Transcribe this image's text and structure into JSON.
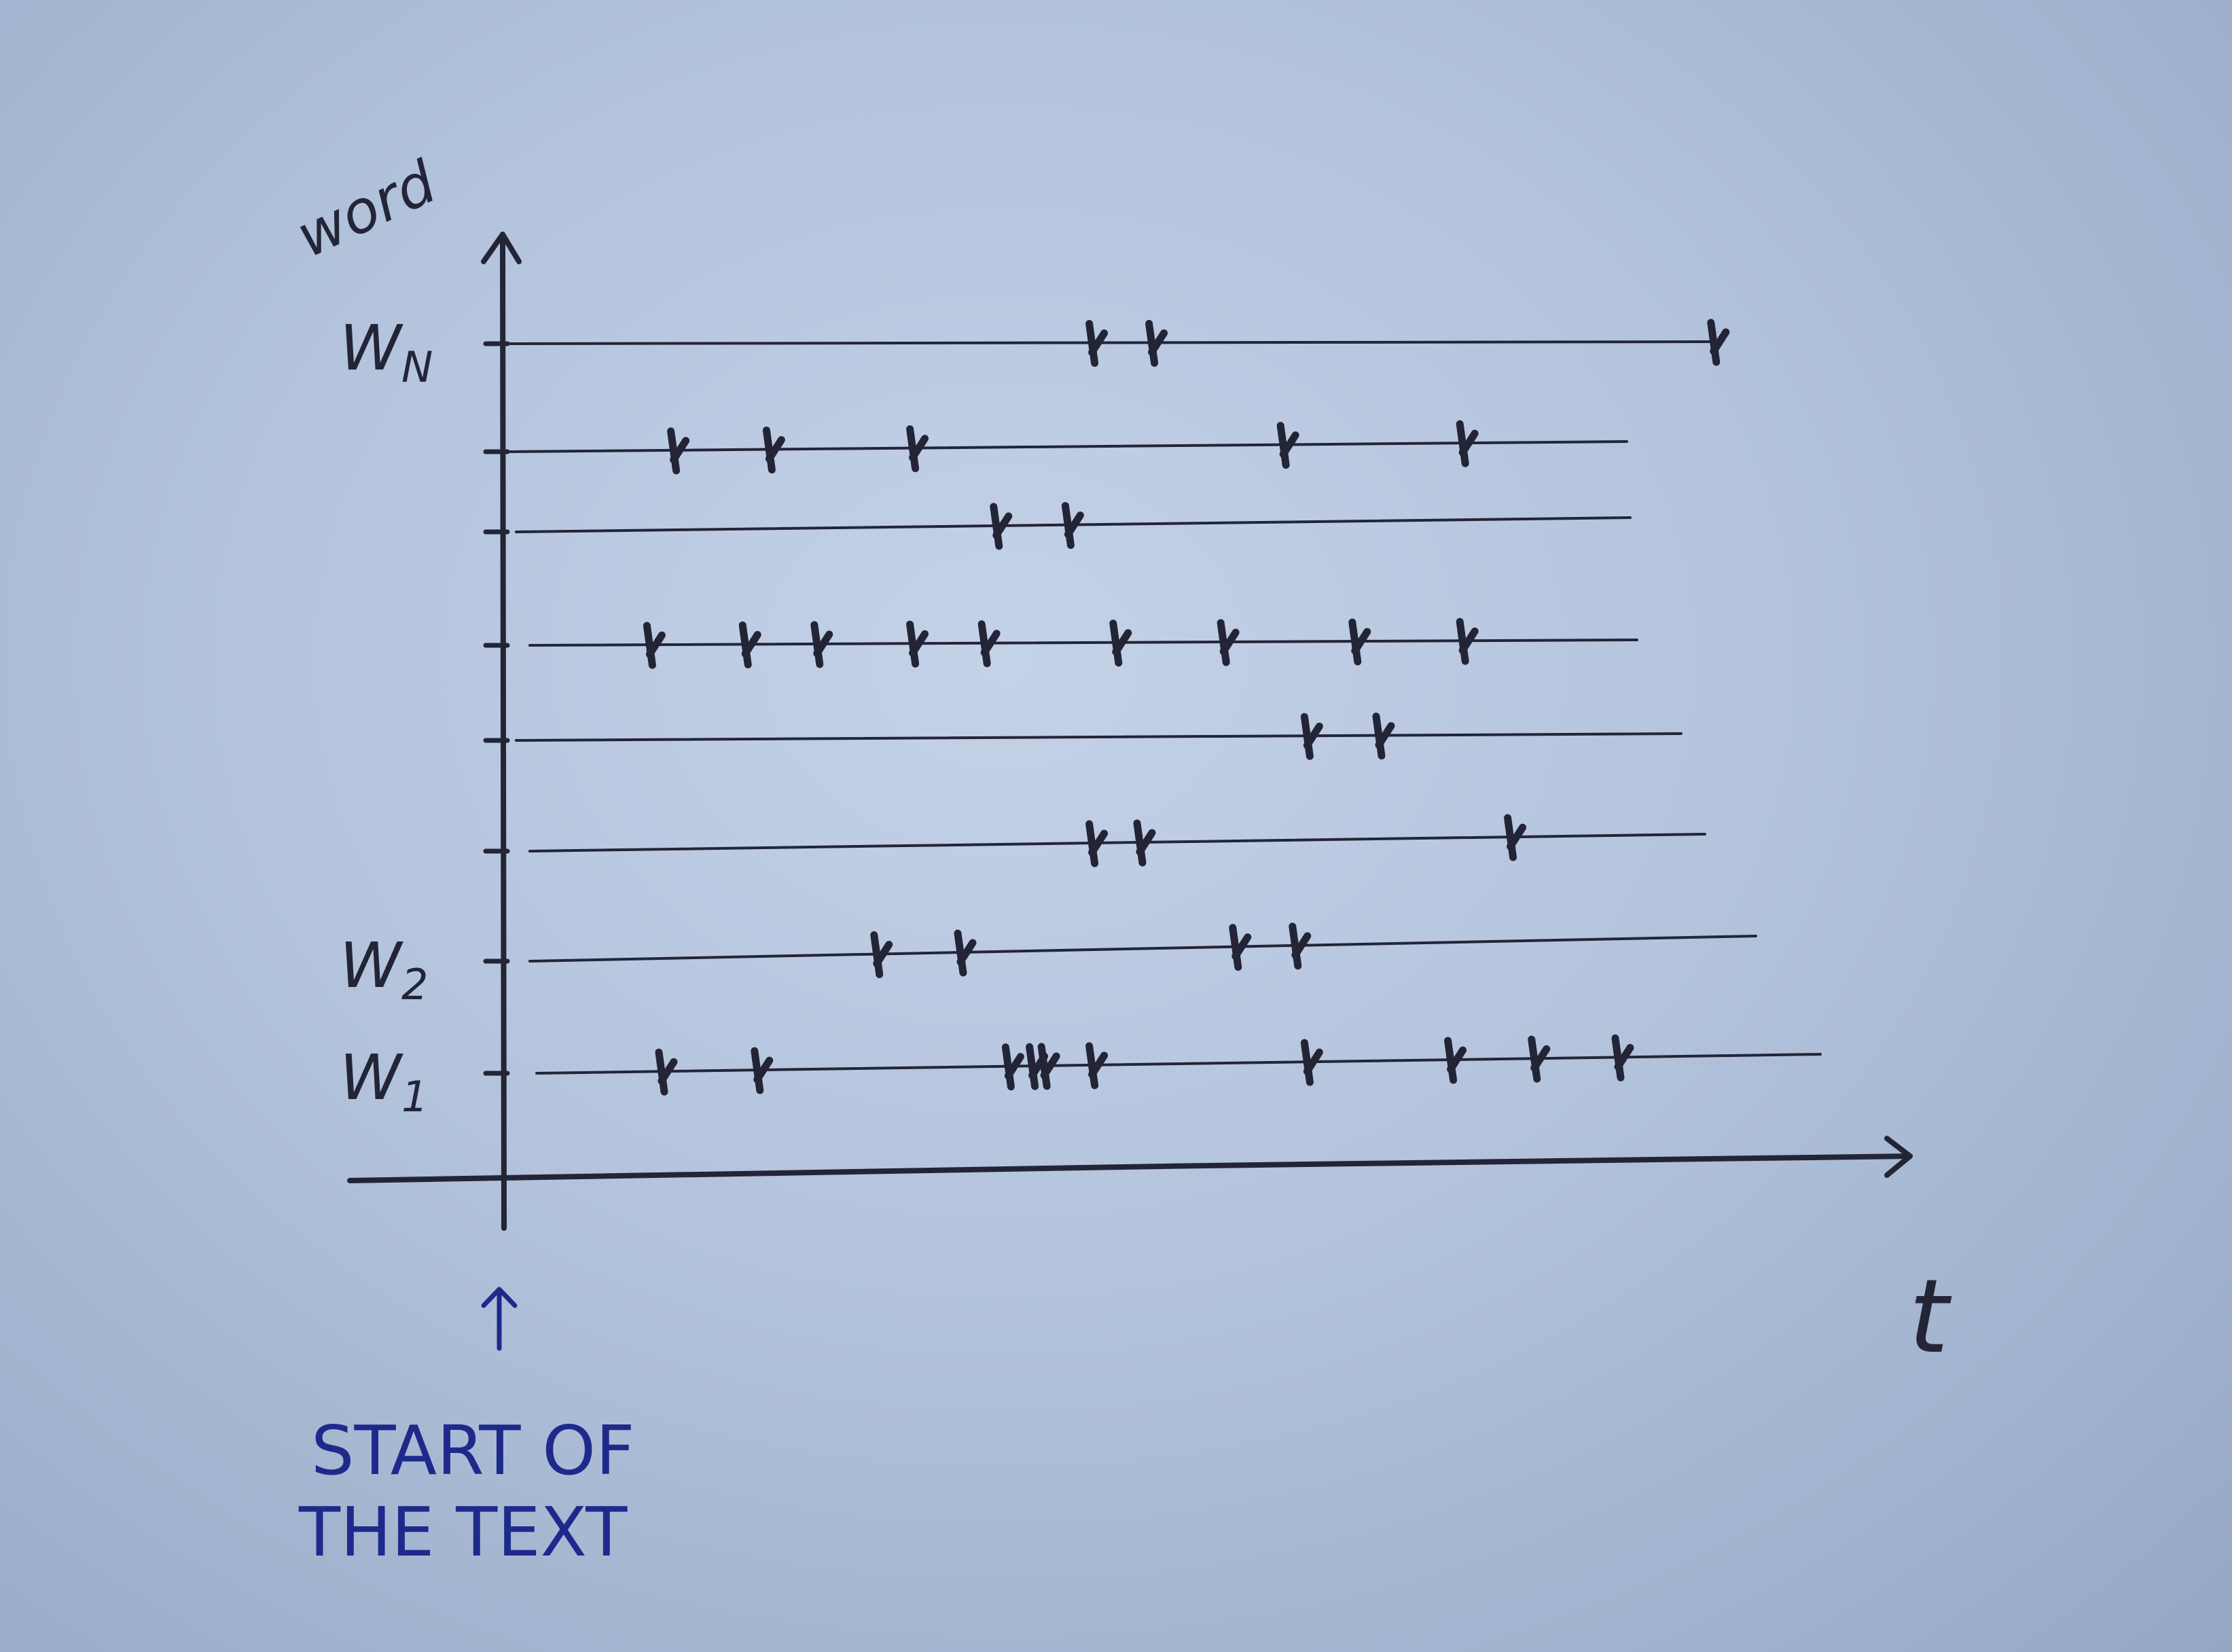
{
  "axis": {
    "y_label": "word",
    "x_label": "t"
  },
  "rows": [
    {
      "label": "W1",
      "events": [
        0.1,
        0.18,
        0.39,
        0.41,
        0.42,
        0.46,
        0.64,
        0.76,
        0.83,
        0.9
      ]
    },
    {
      "label": "W2",
      "events": [
        0.28,
        0.35,
        0.58,
        0.63
      ]
    },
    {
      "label": "",
      "events": [
        0.46,
        0.5,
        0.81
      ]
    },
    {
      "label": "",
      "events": [
        0.64,
        0.7
      ]
    },
    {
      "label": "",
      "events": [
        0.09,
        0.17,
        0.23,
        0.31,
        0.37,
        0.48,
        0.57,
        0.68,
        0.77
      ]
    },
    {
      "label": "",
      "events": [
        0.38,
        0.44
      ]
    },
    {
      "label": "",
      "events": [
        0.11,
        0.19,
        0.31,
        0.62,
        0.77
      ]
    },
    {
      "label": "WN",
      "events": [
        0.46,
        0.51,
        0.98
      ]
    }
  ],
  "annotation": {
    "line1": "START OF",
    "line2": "THE TEXT"
  },
  "colors": {
    "paper": "#b8c7df",
    "ink": "#232536",
    "blue_ink": "#1d2a8c"
  }
}
